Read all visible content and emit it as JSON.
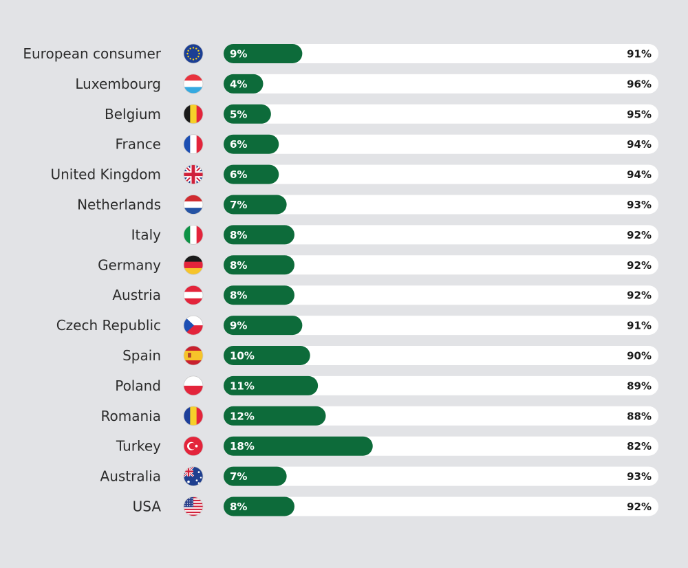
{
  "colors": {
    "background": "#e2e3e6",
    "series_green": "#0d6b3a",
    "series_white": "#ffffff"
  },
  "chart_data": {
    "type": "bar",
    "orientation": "horizontal",
    "stacked": true,
    "xlim": [
      0,
      100
    ],
    "unit": "%",
    "categories": [
      "European consumer",
      "Luxembourg",
      "Belgium",
      "France",
      "United Kingdom",
      "Netherlands",
      "Italy",
      "Germany",
      "Austria",
      "Czech Republic",
      "Spain",
      "Poland",
      "Romania",
      "Turkey",
      "Australia",
      "USA"
    ],
    "flags": [
      "eu-flag-icon",
      "luxembourg-flag-icon",
      "belgium-flag-icon",
      "france-flag-icon",
      "uk-flag-icon",
      "netherlands-flag-icon",
      "italy-flag-icon",
      "germany-flag-icon",
      "austria-flag-icon",
      "czech-flag-icon",
      "spain-flag-icon",
      "poland-flag-icon",
      "romania-flag-icon",
      "turkey-flag-icon",
      "australia-flag-icon",
      "usa-flag-icon"
    ],
    "series": [
      {
        "color": "#0d6b3a",
        "values": [
          9,
          4,
          5,
          6,
          6,
          7,
          8,
          8,
          8,
          9,
          10,
          11,
          12,
          18,
          7,
          8
        ],
        "labels": [
          "9%",
          "4%",
          "5%",
          "6%",
          "6%",
          "7%",
          "8%",
          "8%",
          "8%",
          "9%",
          "10%",
          "11%",
          "12%",
          "18%",
          "7%",
          "8%"
        ]
      },
      {
        "color": "#ffffff",
        "values": [
          91,
          96,
          95,
          94,
          94,
          93,
          92,
          92,
          92,
          91,
          90,
          89,
          88,
          82,
          93,
          92
        ],
        "labels": [
          "91%",
          "96%",
          "95%",
          "94%",
          "94%",
          "93%",
          "92%",
          "92%",
          "92%",
          "91%",
          "90%",
          "89%",
          "88%",
          "82%",
          "93%",
          "92%"
        ]
      }
    ]
  }
}
